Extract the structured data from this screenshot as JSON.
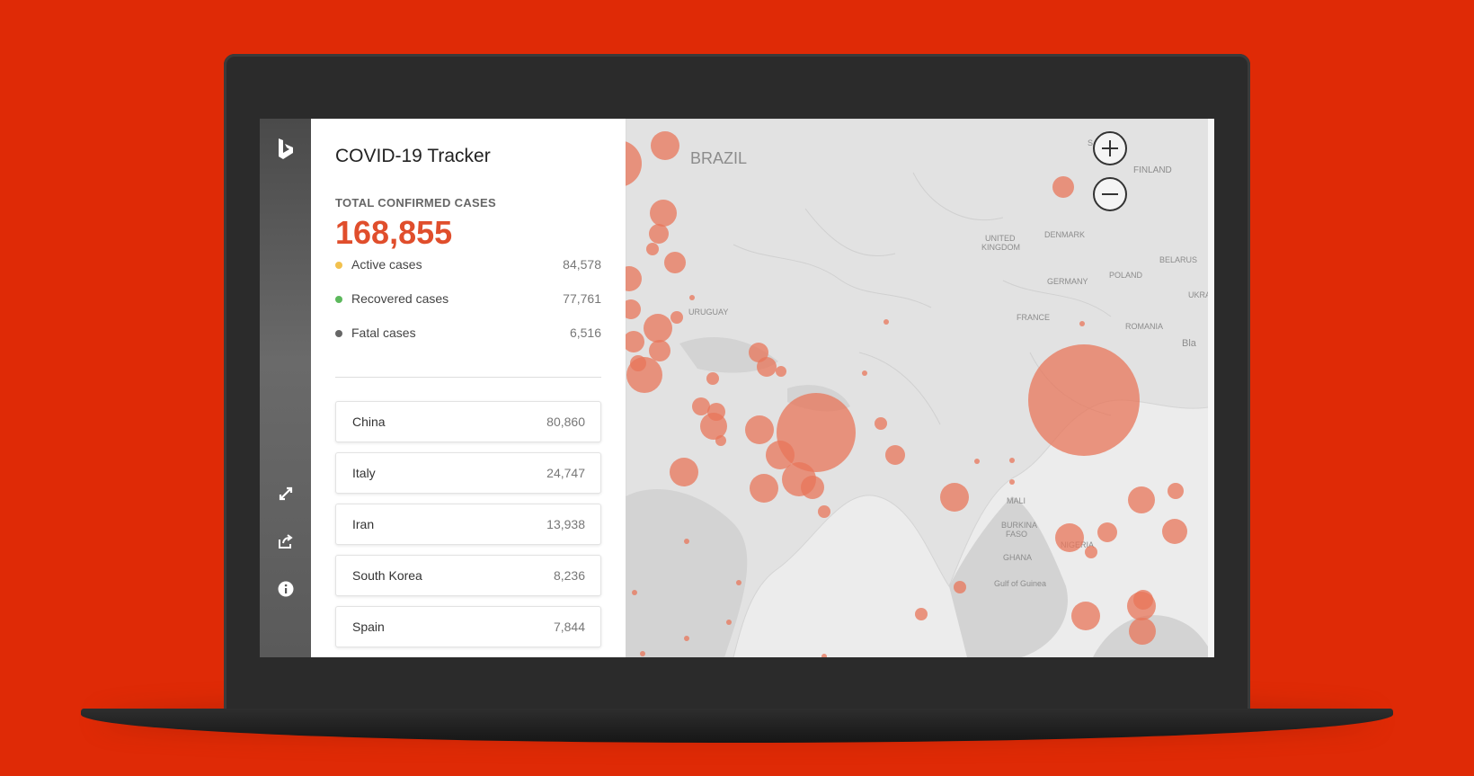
{
  "app": {
    "title": "COVID-19 Tracker"
  },
  "summary": {
    "total_label": "TOTAL CONFIRMED CASES",
    "total_value": "168,855",
    "stats": [
      {
        "label": "Active cases",
        "value": "84,578",
        "color": "#f2c14e"
      },
      {
        "label": "Recovered cases",
        "value": "77,761",
        "color": "#5cb85c"
      },
      {
        "label": "Fatal cases",
        "value": "6,516",
        "color": "#666666"
      }
    ]
  },
  "countries": [
    {
      "name": "China",
      "count": "80,860"
    },
    {
      "name": "Italy",
      "count": "24,747"
    },
    {
      "name": "Iran",
      "count": "13,938"
    },
    {
      "name": "South Korea",
      "count": "8,236"
    },
    {
      "name": "Spain",
      "count": "7,844"
    }
  ],
  "map": {
    "labels": {
      "brazil": "BRAZIL",
      "finland": "FINLAND",
      "united_kingdom_1": "UNITED",
      "united_kingdom_2": "KINGDOM",
      "denmark": "DENMARK",
      "belarus": "BELARUS",
      "poland": "POLAND",
      "germany": "GERMANY",
      "ukraine": "UKRAI",
      "uruguay": "URUGUAY",
      "france": "FRANCE",
      "romania": "ROMANIA",
      "black_sea": "Bla",
      "mali": "MALI",
      "burkina_faso_1": "BURKINA",
      "burkina_faso_2": "FASO",
      "nigeria": "NIGERIA",
      "ghana": "GHANA",
      "gulf_of_guinea": "Gulf of Guinea",
      "sweden": "S"
    },
    "bubble_color": "#e8765a",
    "zoom_in": "+",
    "zoom_out": "−"
  },
  "rail_icons": [
    "bing-logo-icon",
    "expand-icon",
    "share-icon",
    "info-icon"
  ]
}
